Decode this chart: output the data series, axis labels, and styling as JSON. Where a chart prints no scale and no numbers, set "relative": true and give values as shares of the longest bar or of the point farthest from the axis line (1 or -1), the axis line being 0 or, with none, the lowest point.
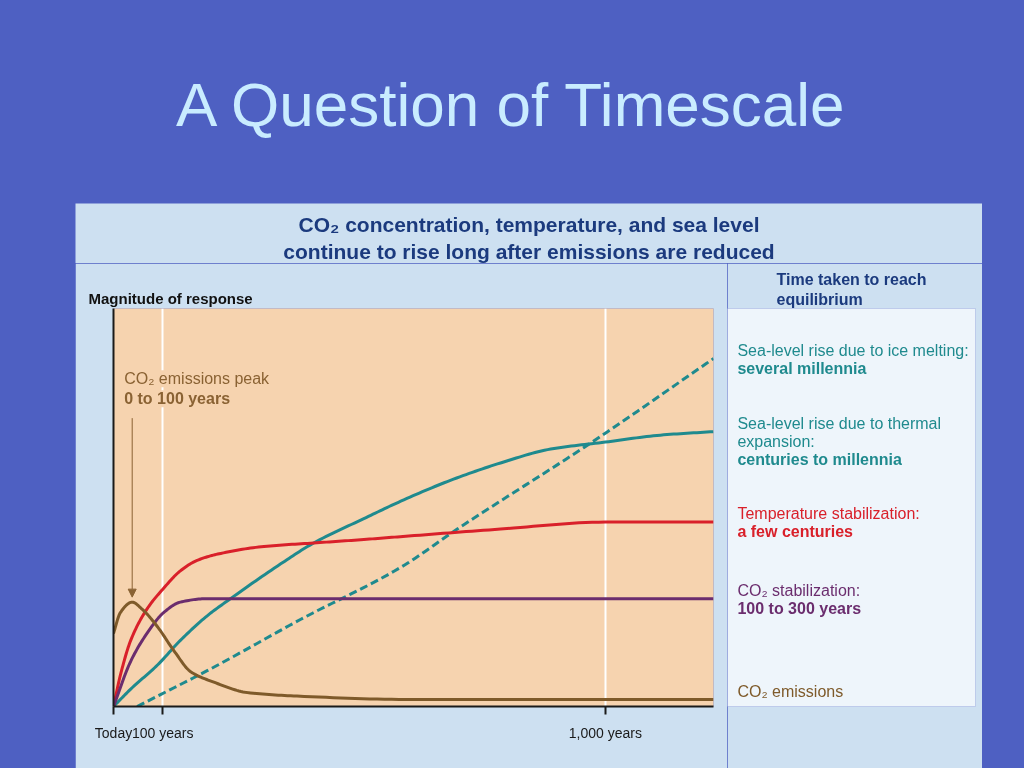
{
  "chart_data": {
    "type": "line",
    "title": "A Question of Timescale",
    "subtitle": "CO₂ concentration, temperature, and sea level continue to rise long after emissions are reduced",
    "ylabel": "Magnitude of response",
    "legend_title": "Time taken to reach equilibrium",
    "legend": "right",
    "relative": true,
    "grid": "x",
    "xlim": [
      0,
      1220
    ],
    "xticks": [
      {
        "value": 0,
        "label": "Today"
      },
      {
        "value": 100,
        "label": "100 years"
      },
      {
        "value": 1000,
        "label": "1,000 years"
      }
    ],
    "series": [
      {
        "name": "Sea-level rise due to ice melting:\nseveral millennia",
        "color": "#1f8a8e",
        "line_style": "dashed",
        "x": [
          48,
          200,
          380,
          584,
          699,
          973,
          1220
        ],
        "values": [
          0,
          0.11,
          0.25,
          0.4,
          0.51,
          0.76,
          1.0
        ]
      },
      {
        "name": "Sea-level rise due to thermal expansion:\ncenturies to millennia",
        "color": "#1f8a8e",
        "line_style": "solid",
        "x": [
          0,
          35,
          90,
          136,
          190,
          238,
          340,
          407,
          509,
          584,
          685,
          787,
          889,
          1000,
          1112,
          1220
        ],
        "values": [
          0,
          0.05,
          0.12,
          0.19,
          0.26,
          0.31,
          0.41,
          0.47,
          0.54,
          0.59,
          0.65,
          0.7,
          0.74,
          0.76,
          0.78,
          0.79
        ]
      },
      {
        "name": "Temperature stabilization:\na few centuries",
        "color": "#d9202a",
        "line_style": "solid",
        "x": [
          0,
          14,
          35,
          68,
          102,
          136,
          170,
          218,
          306,
          407,
          509,
          600,
          787,
          1000,
          1220
        ],
        "values": [
          0,
          0.09,
          0.19,
          0.28,
          0.34,
          0.39,
          0.42,
          0.44,
          0.46,
          0.47,
          0.48,
          0.49,
          0.51,
          0.53,
          0.53
        ]
      },
      {
        "name": "CO₂ stabilization:\n100 to 300 years",
        "color": "#6b2d6e",
        "line_style": "solid",
        "x": [
          0,
          35,
          68,
          102,
          136,
          190,
          1220
        ],
        "values": [
          0,
          0.13,
          0.21,
          0.27,
          0.3,
          0.31,
          0.31
        ]
      },
      {
        "name": "CO₂ emissions",
        "color": "#7e5a2a",
        "line_style": "solid",
        "x": [
          0,
          14,
          38,
          58,
          89,
          123,
          157,
          204,
          272,
          373,
          610,
          1000,
          1220
        ],
        "values": [
          0.21,
          0.27,
          0.3,
          0.28,
          0.23,
          0.16,
          0.1,
          0.07,
          0.04,
          0.03,
          0.02,
          0.02,
          0.02
        ]
      }
    ],
    "annotations": [
      {
        "text": "CO₂ emissions peak\n0 to 100 years",
        "x": 38,
        "y": 0.3
      }
    ]
  }
}
